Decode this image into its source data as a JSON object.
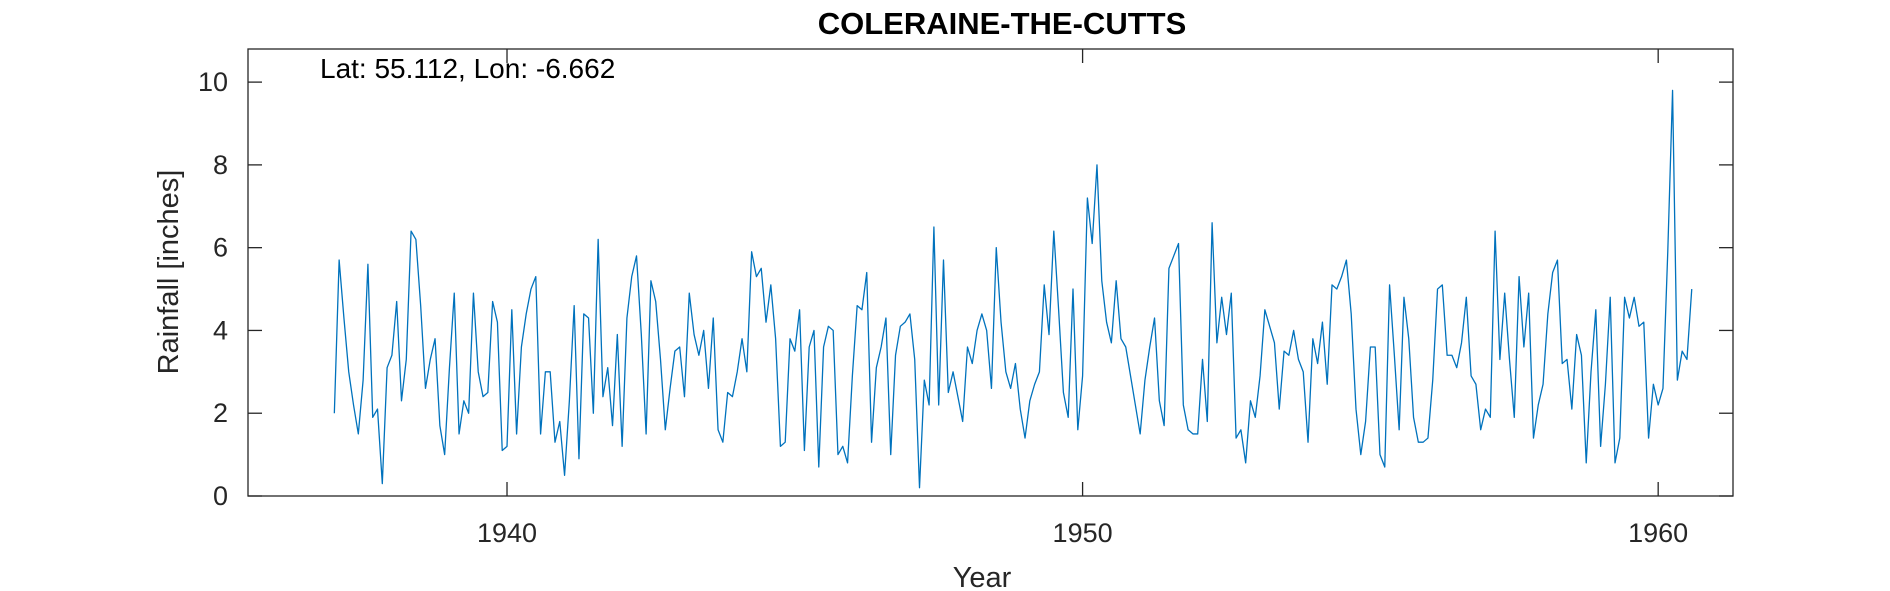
{
  "chart_data": {
    "type": "line",
    "title": "COLERAINE-THE-CUTTS",
    "annotation": "Lat: 55.112, Lon: -6.662",
    "xlabel": "Year",
    "ylabel": "Rainfall [inches]",
    "xlim": [
      1935.5,
      1961.3
    ],
    "ylim": [
      0,
      10.8
    ],
    "xticks": [
      1940,
      1950,
      1960
    ],
    "yticks": [
      0,
      2,
      4,
      6,
      8,
      10
    ],
    "x_start": 1937.0,
    "x_step_months": 1,
    "series_color": "#0072BD",
    "series": [
      {
        "values": [
          2.0,
          5.7,
          4.3,
          3.0,
          2.2,
          1.5,
          2.8,
          5.6,
          1.9,
          2.1,
          0.3,
          3.1,
          3.4,
          4.7,
          2.3,
          3.3,
          6.4,
          6.2,
          4.6,
          2.6,
          3.3,
          3.8,
          1.7,
          1.0,
          3.1,
          4.9,
          1.5,
          2.3,
          2.0,
          4.9,
          3.0,
          2.4,
          2.5,
          4.7,
          4.2,
          1.1,
          1.2,
          4.5,
          1.5,
          3.6,
          4.4,
          5.0,
          5.3,
          1.5,
          3.0,
          3.0,
          1.3,
          1.8,
          0.5,
          2.3,
          4.6,
          0.9,
          4.4,
          4.3,
          2.0,
          6.2,
          2.4,
          3.1,
          1.7,
          3.9,
          1.2,
          4.3,
          5.3,
          5.8,
          3.9,
          1.5,
          5.2,
          4.7,
          3.3,
          1.6,
          2.6,
          3.5,
          3.6,
          2.4,
          4.9,
          3.9,
          3.4,
          4.0,
          2.6,
          4.3,
          1.6,
          1.3,
          2.5,
          2.4,
          3.0,
          3.8,
          3.0,
          5.9,
          5.3,
          5.5,
          4.2,
          5.1,
          3.8,
          1.2,
          1.3,
          3.8,
          3.5,
          4.5,
          1.1,
          3.6,
          4.0,
          0.7,
          3.6,
          4.1,
          4.0,
          1.0,
          1.2,
          0.8,
          2.9,
          4.6,
          4.5,
          5.4,
          1.3,
          3.1,
          3.6,
          4.3,
          1.0,
          3.4,
          4.1,
          4.2,
          4.4,
          3.3,
          0.2,
          2.8,
          2.2,
          6.5,
          2.2,
          5.7,
          2.5,
          3.0,
          2.4,
          1.8,
          3.6,
          3.2,
          4.0,
          4.4,
          4.0,
          2.6,
          6.0,
          4.2,
          3.0,
          2.6,
          3.2,
          2.1,
          1.4,
          2.3,
          2.7,
          3.0,
          5.1,
          3.9,
          6.4,
          4.5,
          2.5,
          1.9,
          5.0,
          1.6,
          2.9,
          7.2,
          6.1,
          8.0,
          5.2,
          4.2,
          3.7,
          5.2,
          3.8,
          3.6,
          2.9,
          2.2,
          1.5,
          2.8,
          3.6,
          4.3,
          2.3,
          1.7,
          5.5,
          5.8,
          6.1,
          2.2,
          1.6,
          1.5,
          1.5,
          3.3,
          1.8,
          6.6,
          3.7,
          4.8,
          3.9,
          4.9,
          1.4,
          1.6,
          0.8,
          2.3,
          1.9,
          2.9,
          4.5,
          4.1,
          3.7,
          2.1,
          3.5,
          3.4,
          4.0,
          3.3,
          3.0,
          1.3,
          3.8,
          3.2,
          4.2,
          2.7,
          5.1,
          5.0,
          5.3,
          5.7,
          4.4,
          2.1,
          1.0,
          1.8,
          3.6,
          3.6,
          1.0,
          0.7,
          5.1,
          3.4,
          1.6,
          4.8,
          3.8,
          1.9,
          1.3,
          1.3,
          1.4,
          2.8,
          5.0,
          5.1,
          3.4,
          3.4,
          3.1,
          3.7,
          4.8,
          2.9,
          2.7,
          1.6,
          2.1,
          1.9,
          6.4,
          3.3,
          4.9,
          3.3,
          1.9,
          5.3,
          3.6,
          4.9,
          1.4,
          2.2,
          2.7,
          4.4,
          5.4,
          5.7,
          3.2,
          3.3,
          2.1,
          3.9,
          3.4,
          0.8,
          3.0,
          4.5,
          1.2,
          2.7,
          4.8,
          0.8,
          1.4,
          4.8,
          4.3,
          4.8,
          4.1,
          4.2,
          1.4,
          2.7,
          2.2,
          2.6,
          5.9,
          9.8,
          2.8,
          3.5,
          3.3,
          5.0
        ]
      }
    ]
  }
}
